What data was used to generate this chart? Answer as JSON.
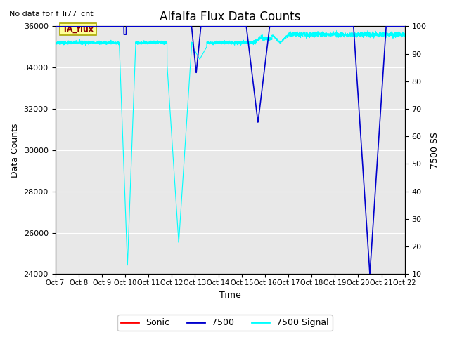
{
  "title": "Alfalfa Flux Data Counts",
  "top_left_text": "No data for f_li77_cnt",
  "ylabel_left": "Data Counts",
  "ylabel_right": "7500 SS",
  "xlabel": "Time",
  "ylim_left": [
    24000,
    36000
  ],
  "ylim_right": [
    10,
    100
  ],
  "yticks_left": [
    24000,
    26000,
    28000,
    30000,
    32000,
    34000,
    36000
  ],
  "yticks_right": [
    10,
    20,
    30,
    40,
    50,
    60,
    70,
    80,
    90,
    100
  ],
  "xtick_labels": [
    "Oct 7",
    "Oct 8",
    "Oct 9",
    "Oct 10",
    "Oct 11",
    "Oct 12",
    "Oct 13",
    "Oct 14",
    "Oct 15",
    "Oct 16",
    "Oct 17",
    "Oct 18",
    "Oct 19",
    "Oct 20",
    "Oct 21",
    "Oct 22"
  ],
  "annotation_text": "TA_flux",
  "bg_color": "#e8e8e8",
  "line_cyan_color": "#00FFFF",
  "line_blue_color": "#0000CD",
  "line_red_color": "#FF0000",
  "legend_labels": [
    "Sonic",
    "7500",
    "7500 Signal"
  ],
  "legend_colors": [
    "#FF0000",
    "#0000CD",
    "#00FFFF"
  ],
  "figsize": [
    6.4,
    4.8
  ],
  "dpi": 100
}
